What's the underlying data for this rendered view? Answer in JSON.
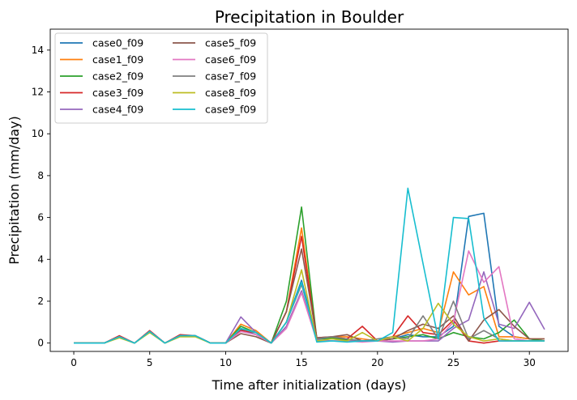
{
  "chart_data": {
    "type": "line",
    "title": "Precipitation in Boulder",
    "xlabel": "Time after initialization (days)",
    "ylabel": "Precipitation (mm/day)",
    "xlim": [
      -1.55,
      32.55
    ],
    "ylim": [
      -0.4,
      15
    ],
    "xticks": [
      0,
      5,
      10,
      15,
      20,
      25,
      30
    ],
    "yticks": [
      0,
      2,
      4,
      6,
      8,
      10,
      12,
      14
    ],
    "legend_position": "top-left",
    "legend_columns": 2,
    "x": [
      0,
      1,
      2,
      3,
      4,
      5,
      6,
      7,
      8,
      9,
      10,
      11,
      12,
      13,
      14,
      15,
      16,
      17,
      18,
      19,
      20,
      21,
      22,
      23,
      24,
      25,
      26,
      27,
      28,
      29,
      30,
      31
    ],
    "series": [
      {
        "name": "case0_f09",
        "color": "#1f77b4",
        "values": [
          0,
          0,
          0,
          0.3,
          0,
          0.55,
          0,
          0.35,
          0.35,
          0,
          0,
          0.65,
          0.4,
          0,
          1.0,
          3.0,
          0.2,
          0.2,
          0.15,
          0.1,
          0.1,
          0.2,
          0.4,
          0.3,
          0.3,
          0.8,
          6.05,
          6.2,
          0.8,
          0.3,
          0.2,
          0.1
        ]
      },
      {
        "name": "case1_f09",
        "color": "#ff7f0e",
        "values": [
          0,
          0,
          0,
          0.3,
          0,
          0.55,
          0,
          0.35,
          0.35,
          0,
          0,
          0.9,
          0.6,
          0,
          1.5,
          5.5,
          0.2,
          0.3,
          0.3,
          0.2,
          0.1,
          0.3,
          0.5,
          0.7,
          0.5,
          3.4,
          2.3,
          2.7,
          0.3,
          0.3,
          0.2,
          0.2
        ]
      },
      {
        "name": "case2_f09",
        "color": "#2ca02c",
        "values": [
          0,
          0,
          0,
          0.3,
          0,
          0.55,
          0,
          0.35,
          0.35,
          0,
          0,
          0.8,
          0.5,
          0,
          2.0,
          6.5,
          0.2,
          0.25,
          0.15,
          0.1,
          0.1,
          0.2,
          0.3,
          0.4,
          0.2,
          0.5,
          0.3,
          0.2,
          0.5,
          1.1,
          0.2,
          0.1
        ]
      },
      {
        "name": "case3_f09",
        "color": "#d62728",
        "values": [
          0,
          0,
          0,
          0.35,
          0,
          0.6,
          0,
          0.4,
          0.35,
          0,
          0,
          0.6,
          0.5,
          0,
          1.5,
          5.1,
          0.25,
          0.3,
          0.2,
          0.8,
          0.1,
          0.3,
          1.3,
          0.5,
          0.4,
          1.1,
          0.1,
          0,
          0.1,
          0.1,
          0.1,
          0.1
        ]
      },
      {
        "name": "case4_f09",
        "color": "#9467bd",
        "values": [
          0,
          0,
          0,
          0.3,
          0,
          0.55,
          0,
          0.35,
          0.35,
          0,
          0,
          1.25,
          0.5,
          0,
          0.8,
          2.5,
          0.15,
          0.1,
          0.1,
          0.1,
          0.1,
          0.05,
          0.1,
          0.1,
          0.1,
          0.7,
          1.1,
          3.4,
          0.9,
          0.7,
          1.95,
          0.65
        ]
      },
      {
        "name": "case5_f09",
        "color": "#8c564b",
        "values": [
          0,
          0,
          0,
          0.3,
          0,
          0.55,
          0,
          0.35,
          0.35,
          0,
          0,
          0.45,
          0.3,
          0,
          1.5,
          4.5,
          0.25,
          0.3,
          0.4,
          0.1,
          0.1,
          0.2,
          0.6,
          0.9,
          0.7,
          1.3,
          0.1,
          1.1,
          1.6,
          0.8,
          0.2,
          0.2
        ]
      },
      {
        "name": "case6_f09",
        "color": "#e377c2",
        "values": [
          0,
          0,
          0,
          0.3,
          0,
          0.55,
          0,
          0.35,
          0.35,
          0,
          0,
          0.55,
          0.4,
          0,
          0.7,
          2.4,
          0.1,
          0.1,
          0.1,
          0.05,
          0.1,
          0.1,
          0.1,
          0.1,
          0.2,
          1.0,
          4.4,
          2.9,
          3.65,
          0.2,
          0.1,
          0.1
        ]
      },
      {
        "name": "case7_f09",
        "color": "#7f7f7f",
        "values": [
          0,
          0,
          0,
          0.3,
          0,
          0.55,
          0,
          0.35,
          0.35,
          0,
          0,
          0.7,
          0.5,
          0,
          1.0,
          2.8,
          0.2,
          0.3,
          0.2,
          0.1,
          0.2,
          0.3,
          0.2,
          1.3,
          0.2,
          2.0,
          0.2,
          0.6,
          0.2,
          0.1,
          0.1,
          0.1
        ]
      },
      {
        "name": "case8_f09",
        "color": "#bcbd22",
        "values": [
          0,
          0,
          0,
          0.25,
          0,
          0.5,
          0,
          0.3,
          0.3,
          0,
          0,
          0.7,
          0.5,
          0,
          1.0,
          3.5,
          0.1,
          0.2,
          0.1,
          0.5,
          0.1,
          0.3,
          0.1,
          0.7,
          1.9,
          0.9,
          0.3,
          0.1,
          0.2,
          0.1,
          0.1,
          0.1
        ]
      },
      {
        "name": "case9_f09",
        "color": "#17becf",
        "values": [
          0,
          0,
          0,
          0.3,
          0,
          0.55,
          0,
          0.35,
          0.35,
          0,
          0,
          0.7,
          0.5,
          0,
          1.0,
          2.9,
          0.05,
          0.1,
          0.05,
          0.1,
          0.1,
          0.5,
          7.4,
          3.8,
          0.2,
          6.0,
          5.95,
          1.2,
          0.1,
          0.1,
          0.1,
          0.1
        ]
      }
    ]
  }
}
